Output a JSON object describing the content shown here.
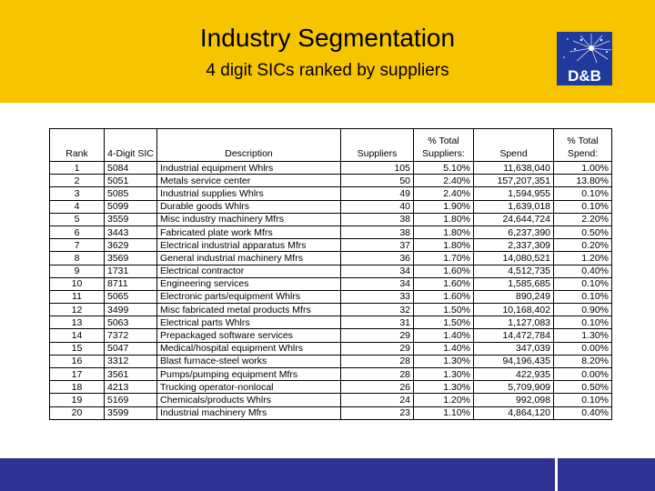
{
  "slide": {
    "title": "Industry Segmentation",
    "subtitle": "4 digit SICs ranked by suppliers",
    "logo_text": "D&B",
    "colors": {
      "header": "#f7c500",
      "footer": "#2e3192",
      "logo_bg": "#1f3a9c"
    }
  },
  "table": {
    "headers": {
      "rank": "Rank",
      "sic": "4-Digit SIC",
      "description": "Description",
      "suppliers": "Suppliers",
      "pct_suppliers": "% Total Suppliers:",
      "spend": "Spend",
      "pct_spend": "% Total Spend:"
    },
    "rows": [
      {
        "rank": "1",
        "sic": "5084",
        "description": "Industrial equipment Whlrs",
        "suppliers": "105",
        "pct_suppliers": "5.10%",
        "spend": "11,638,040",
        "pct_spend": "1.00%"
      },
      {
        "rank": "2",
        "sic": "5051",
        "description": "Metals service center",
        "suppliers": "50",
        "pct_suppliers": "2.40%",
        "spend": "157,207,351",
        "pct_spend": "13.80%"
      },
      {
        "rank": "3",
        "sic": "5085",
        "description": "Industrial supplies Whlrs",
        "suppliers": "49",
        "pct_suppliers": "2.40%",
        "spend": "1,594,955",
        "pct_spend": "0.10%"
      },
      {
        "rank": "4",
        "sic": "5099",
        "description": "Durable goods Whlrs",
        "suppliers": "40",
        "pct_suppliers": "1.90%",
        "spend": "1,639,018",
        "pct_spend": "0.10%"
      },
      {
        "rank": "5",
        "sic": "3559",
        "description": "Misc industry machinery Mfrs",
        "suppliers": "38",
        "pct_suppliers": "1.80%",
        "spend": "24,644,724",
        "pct_spend": "2.20%"
      },
      {
        "rank": "6",
        "sic": "3443",
        "description": "Fabricated plate work Mfrs",
        "suppliers": "38",
        "pct_suppliers": "1.80%",
        "spend": "6,237,390",
        "pct_spend": "0.50%"
      },
      {
        "rank": "7",
        "sic": "3629",
        "description": "Electrical industrial apparatus Mfrs",
        "suppliers": "37",
        "pct_suppliers": "1.80%",
        "spend": "2,337,309",
        "pct_spend": "0.20%"
      },
      {
        "rank": "8",
        "sic": "3569",
        "description": "General industrial machinery Mfrs",
        "suppliers": "36",
        "pct_suppliers": "1.70%",
        "spend": "14,080,521",
        "pct_spend": "1.20%"
      },
      {
        "rank": "9",
        "sic": "1731",
        "description": "Electrical contractor",
        "suppliers": "34",
        "pct_suppliers": "1.60%",
        "spend": "4,512,735",
        "pct_spend": "0.40%"
      },
      {
        "rank": "10",
        "sic": "8711",
        "description": "Engineering services",
        "suppliers": "34",
        "pct_suppliers": "1.60%",
        "spend": "1,585,685",
        "pct_spend": "0.10%"
      },
      {
        "rank": "11",
        "sic": "5065",
        "description": "Electronic parts/equipment Whlrs",
        "suppliers": "33",
        "pct_suppliers": "1.60%",
        "spend": "890,249",
        "pct_spend": "0.10%"
      },
      {
        "rank": "12",
        "sic": "3499",
        "description": "Misc fabricated metal products Mfrs",
        "suppliers": "32",
        "pct_suppliers": "1.50%",
        "spend": "10,168,402",
        "pct_spend": "0.90%"
      },
      {
        "rank": "13",
        "sic": "5063",
        "description": "Electrical parts Whlrs",
        "suppliers": "31",
        "pct_suppliers": "1.50%",
        "spend": "1,127,083",
        "pct_spend": "0.10%"
      },
      {
        "rank": "14",
        "sic": "7372",
        "description": "Prepackaged software services",
        "suppliers": "29",
        "pct_suppliers": "1.40%",
        "spend": "14,472,784",
        "pct_spend": "1.30%"
      },
      {
        "rank": "15",
        "sic": "5047",
        "description": "Medical/hospital equipment Whlrs",
        "suppliers": "29",
        "pct_suppliers": "1.40%",
        "spend": "347,039",
        "pct_spend": "0.00%"
      },
      {
        "rank": "16",
        "sic": "3312",
        "description": "Blast furnace-steel works",
        "suppliers": "28",
        "pct_suppliers": "1.30%",
        "spend": "94,196,435",
        "pct_spend": "8.20%"
      },
      {
        "rank": "17",
        "sic": "3561",
        "description": "Pumps/pumping equipment Mfrs",
        "suppliers": "28",
        "pct_suppliers": "1.30%",
        "spend": "422,935",
        "pct_spend": "0.00%"
      },
      {
        "rank": "18",
        "sic": "4213",
        "description": "Trucking operator-nonlocal",
        "suppliers": "26",
        "pct_suppliers": "1.30%",
        "spend": "5,709,909",
        "pct_spend": "0.50%"
      },
      {
        "rank": "19",
        "sic": "5169",
        "description": "Chemicals/products Whlrs",
        "suppliers": "24",
        "pct_suppliers": "1.20%",
        "spend": "992,098",
        "pct_spend": "0.10%"
      },
      {
        "rank": "20",
        "sic": "3599",
        "description": "Industrial machinery Mfrs",
        "suppliers": "23",
        "pct_suppliers": "1.10%",
        "spend": "4,864,120",
        "pct_spend": "0.40%"
      }
    ]
  }
}
